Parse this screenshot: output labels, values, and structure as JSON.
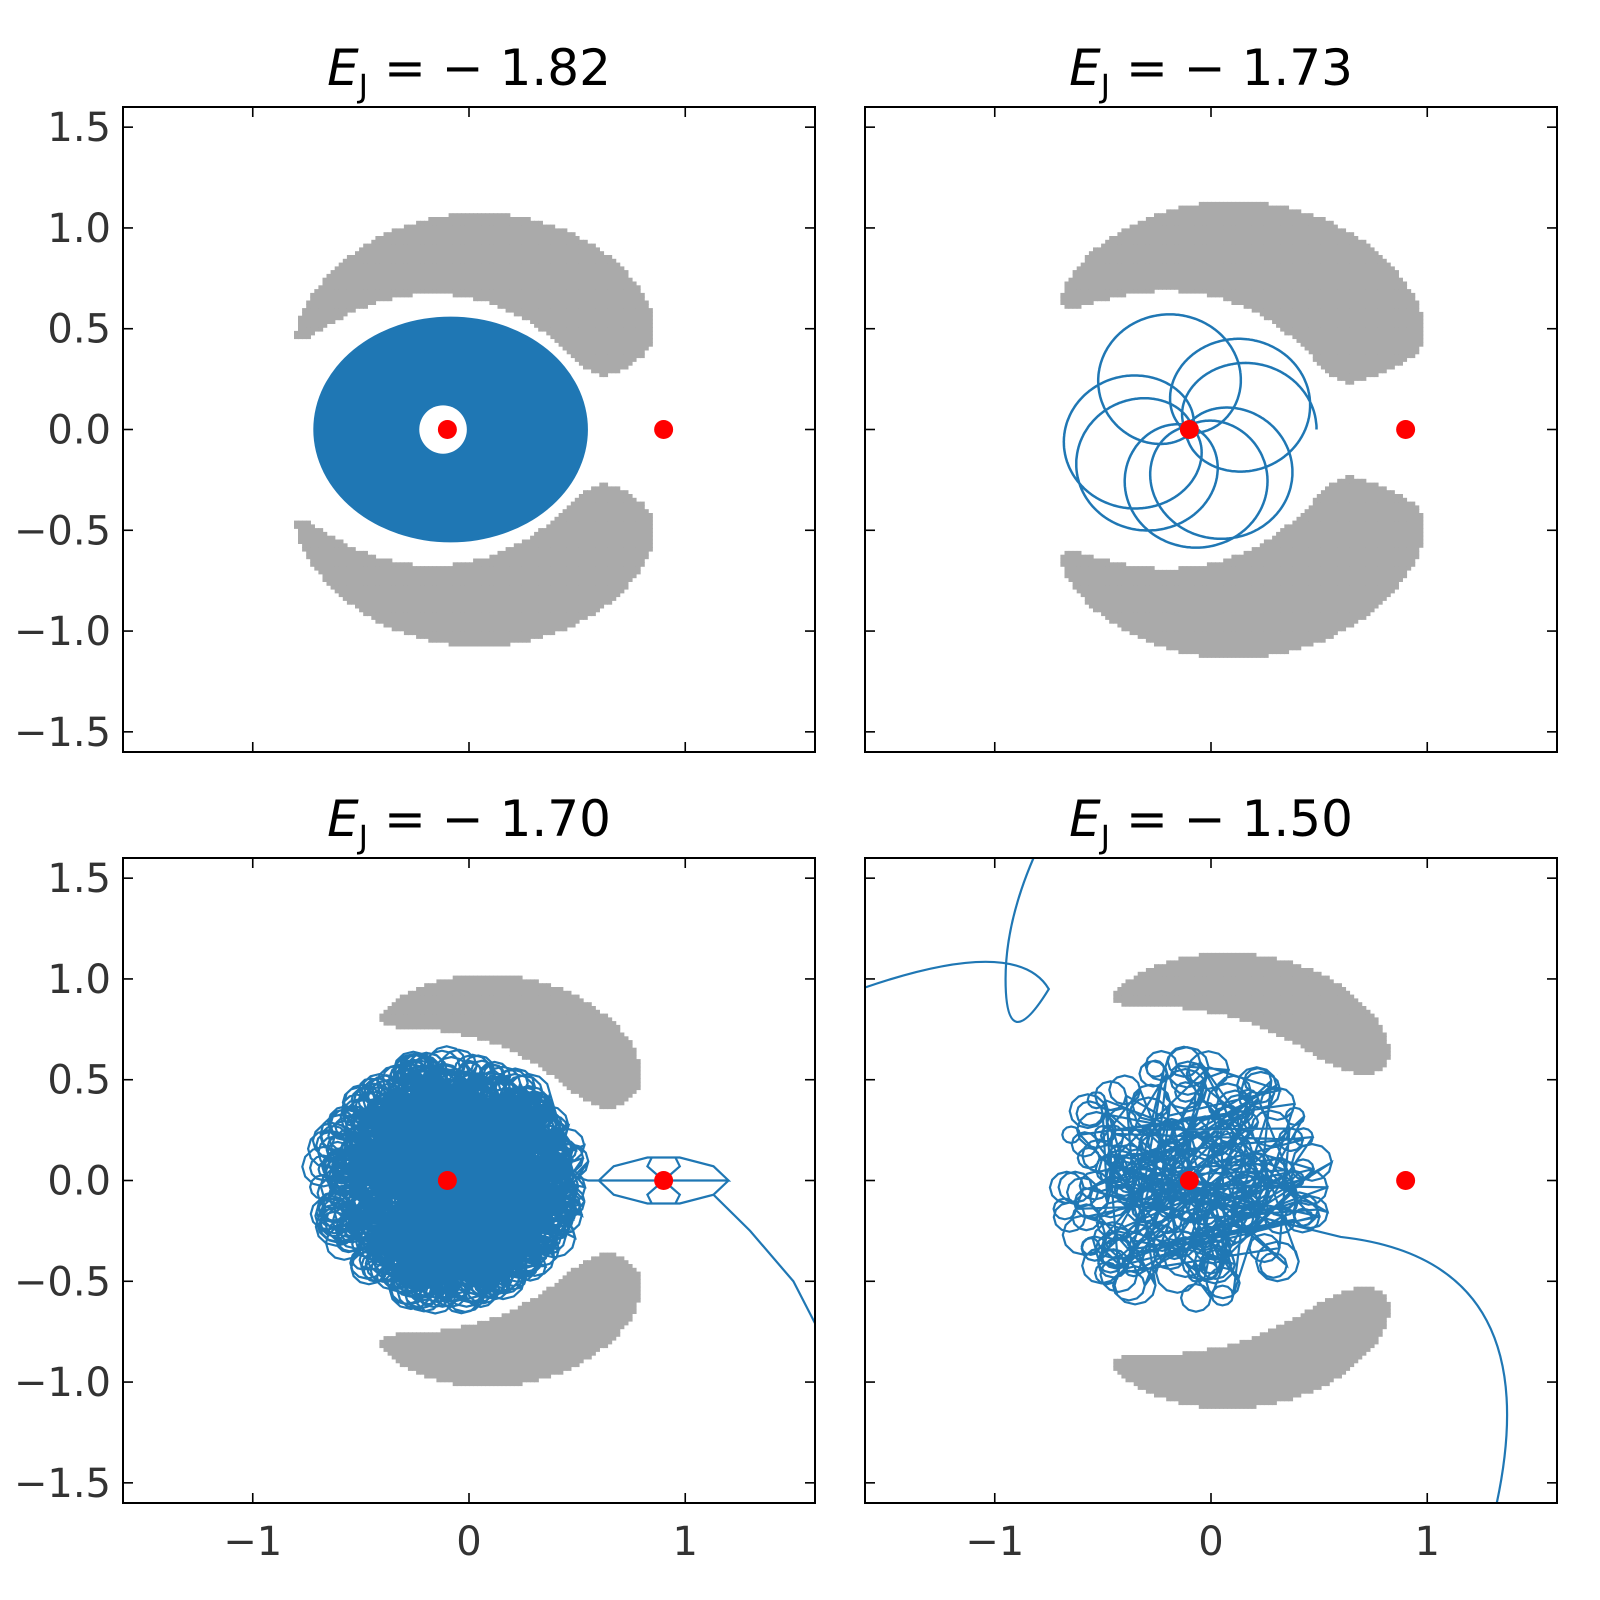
{
  "chart_data": [
    {
      "type": "scatter",
      "title_symbol": "E",
      "title_subscript": "J",
      "title_value": " = − 1.82",
      "energy": -1.82,
      "xlim": [
        -1.6,
        1.6
      ],
      "ylim": [
        -1.6,
        1.6
      ],
      "grid": false,
      "forbidden_region_color": "#aaaaaa",
      "orbit_color": "#1f77b4",
      "masses": [
        {
          "x": -0.1,
          "y": 0.0
        },
        {
          "x": 0.9,
          "y": 0.0
        }
      ],
      "mass_color": "#ff0000",
      "orbit_type": "filled-annulus"
    },
    {
      "type": "scatter",
      "title_symbol": "E",
      "title_subscript": "J",
      "title_value": " = − 1.73",
      "energy": -1.73,
      "xlim": [
        -1.6,
        1.6
      ],
      "ylim": [
        -1.6,
        1.6
      ],
      "grid": false,
      "forbidden_region_color": "#aaaaaa",
      "orbit_color": "#1f77b4",
      "masses": [
        {
          "x": -0.1,
          "y": 0.0
        },
        {
          "x": 0.9,
          "y": 0.0
        }
      ],
      "mass_color": "#ff0000",
      "orbit_type": "rosette"
    },
    {
      "type": "scatter",
      "title_symbol": "E",
      "title_subscript": "J",
      "title_value": " = − 1.70",
      "energy": -1.7,
      "xlim": [
        -1.6,
        1.6
      ],
      "ylim": [
        -1.6,
        1.6
      ],
      "grid": false,
      "forbidden_region_color": "#aaaaaa",
      "orbit_color": "#1f77b4",
      "masses": [
        {
          "x": -0.1,
          "y": 0.0
        },
        {
          "x": 0.9,
          "y": 0.0
        }
      ],
      "mass_color": "#ff0000",
      "orbit_type": "chaotic-escape-L1"
    },
    {
      "type": "scatter",
      "title_symbol": "E",
      "title_subscript": "J",
      "title_value": " = − 1.50",
      "energy": -1.5,
      "xlim": [
        -1.6,
        1.6
      ],
      "ylim": [
        -1.6,
        1.6
      ],
      "grid": false,
      "forbidden_region_color": "#aaaaaa",
      "orbit_color": "#1f77b4",
      "masses": [
        {
          "x": -0.1,
          "y": 0.0
        },
        {
          "x": 0.9,
          "y": 0.0
        }
      ],
      "mass_color": "#ff0000",
      "orbit_type": "chaotic-escape"
    }
  ],
  "axes": {
    "xticks": [
      -1,
      0,
      1
    ],
    "xtick_labels": [
      "−1",
      "0",
      "1"
    ],
    "yticks": [
      -1.5,
      -1.0,
      -0.5,
      0.0,
      0.5,
      1.0,
      1.5
    ],
    "ytick_labels": [
      "−1.5",
      "−1.0",
      "−0.5",
      "0.0",
      "0.5",
      "1.0",
      "1.5"
    ]
  }
}
